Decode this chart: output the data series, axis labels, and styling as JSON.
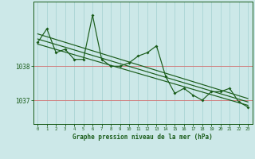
{
  "xlabel": "Graphe pression niveau de la mer (hPa)",
  "background_color": "#cce8e8",
  "grid_color": "#aad4d4",
  "line_color": "#1a5c1a",
  "text_color": "#1a5c1a",
  "hline_color": "#d08080",
  "hours": [
    0,
    1,
    2,
    3,
    4,
    5,
    6,
    7,
    8,
    9,
    10,
    11,
    12,
    13,
    14,
    15,
    16,
    17,
    18,
    19,
    20,
    21,
    22,
    23
  ],
  "pressure_main": [
    1038.7,
    1039.1,
    1038.4,
    1038.5,
    1038.2,
    1038.2,
    1039.5,
    1038.2,
    1038.0,
    1038.0,
    1038.1,
    1038.3,
    1038.4,
    1038.6,
    1037.7,
    1037.2,
    1037.35,
    1037.15,
    1037.0,
    1037.25,
    1037.25,
    1037.35,
    1036.95,
    1036.8
  ],
  "trend_lines": [
    [
      1038.95,
      1037.05
    ],
    [
      1038.8,
      1036.95
    ],
    [
      1038.65,
      1036.85
    ]
  ],
  "yticks": [
    1037.0,
    1038.0
  ],
  "ylim": [
    1036.3,
    1039.9
  ],
  "xlim": [
    -0.5,
    23.5
  ]
}
